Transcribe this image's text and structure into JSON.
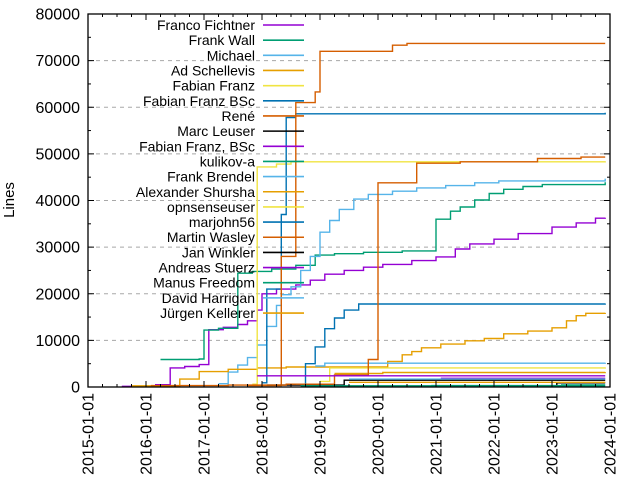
{
  "chart_data": {
    "type": "line",
    "title": "",
    "xlabel": "",
    "ylabel": "Lines",
    "x_ticks": [
      "2015-01-01",
      "2016-01-01",
      "2017-01-01",
      "2018-01-01",
      "2019-01-01",
      "2020-01-01",
      "2021-01-01",
      "2022-01-01",
      "2023-01-01",
      "2024-01-01"
    ],
    "y_ticks": [
      "0",
      "10000",
      "20000",
      "30000",
      "40000",
      "50000",
      "60000",
      "70000",
      "80000"
    ],
    "ylim": [
      0,
      80000
    ],
    "y_tick_step": 10000,
    "y_minor_step": 5000,
    "x_minor_per_year": 4,
    "grid": "horizontal-dashed",
    "grid_color": "#a8a8a8",
    "axis_color": "#000000",
    "legend_position": "top-left-inside",
    "series": [
      {
        "name": "Franco Fichtner",
        "color": "#9400d3",
        "points": [
          [
            "2015-08",
            150
          ],
          [
            "2016-03",
            500
          ],
          [
            "2016-06",
            4100
          ],
          [
            "2016-09",
            4400
          ],
          [
            "2016-12",
            4800
          ],
          [
            "2017-02",
            12300
          ],
          [
            "2017-05",
            12800
          ],
          [
            "2017-08",
            13400
          ],
          [
            "2017-10",
            14200
          ],
          [
            "2017-12",
            16500
          ],
          [
            "2018-01",
            20000
          ],
          [
            "2018-04",
            21000
          ],
          [
            "2018-08",
            21900
          ],
          [
            "2018-11",
            22900
          ],
          [
            "2019-02",
            24200
          ],
          [
            "2019-06",
            25000
          ],
          [
            "2019-10",
            25700
          ],
          [
            "2020-02",
            26300
          ],
          [
            "2020-08",
            27100
          ],
          [
            "2021-01",
            27900
          ],
          [
            "2021-05",
            29600
          ],
          [
            "2021-08",
            30700
          ],
          [
            "2022-01",
            31700
          ],
          [
            "2022-06",
            32900
          ],
          [
            "2023-01",
            34300
          ],
          [
            "2023-06",
            35200
          ],
          [
            "2023-10",
            36200
          ],
          [
            "2023-12",
            36300
          ]
        ]
      },
      {
        "name": "Frank Wall",
        "color": "#009e73",
        "points": [
          [
            "2016-04",
            5900
          ],
          [
            "2016-12",
            6000
          ],
          [
            "2017-01",
            12200
          ],
          [
            "2017-04",
            12600
          ],
          [
            "2017-08",
            24400
          ],
          [
            "2017-11",
            24800
          ],
          [
            "2018-03",
            25300
          ],
          [
            "2018-08",
            26100
          ],
          [
            "2018-12",
            28300
          ],
          [
            "2019-04",
            28600
          ],
          [
            "2019-10",
            28900
          ],
          [
            "2020-06",
            29200
          ],
          [
            "2021-01",
            36000
          ],
          [
            "2021-04",
            37700
          ],
          [
            "2021-06",
            38600
          ],
          [
            "2021-09",
            40100
          ],
          [
            "2021-12",
            41500
          ],
          [
            "2022-03",
            42400
          ],
          [
            "2022-07",
            43000
          ],
          [
            "2022-11",
            43400
          ],
          [
            "2023-12",
            43900
          ]
        ]
      },
      {
        "name": "Michael",
        "color": "#56b4e9",
        "points": [
          [
            "2017-04",
            700
          ],
          [
            "2017-06",
            3200
          ],
          [
            "2017-08",
            4700
          ],
          [
            "2017-10",
            6300
          ],
          [
            "2017-12",
            9000
          ],
          [
            "2018-02",
            13000
          ],
          [
            "2018-04",
            17500
          ],
          [
            "2018-05",
            19800
          ],
          [
            "2018-07",
            21500
          ],
          [
            "2018-09",
            25000
          ],
          [
            "2018-11",
            28000
          ],
          [
            "2019-01",
            33200
          ],
          [
            "2019-03",
            35700
          ],
          [
            "2019-05",
            38100
          ],
          [
            "2019-08",
            40300
          ],
          [
            "2019-11",
            41300
          ],
          [
            "2020-04",
            42000
          ],
          [
            "2020-09",
            42700
          ],
          [
            "2021-03",
            43200
          ],
          [
            "2021-09",
            43800
          ],
          [
            "2022-02",
            44200
          ],
          [
            "2023-12",
            44700
          ]
        ]
      },
      {
        "name": "Ad Schellevis",
        "color": "#e69f00",
        "points": [
          [
            "2015-10",
            250
          ],
          [
            "2016-08",
            1700
          ],
          [
            "2016-12",
            3300
          ],
          [
            "2017-06",
            3800
          ],
          [
            "2017-12",
            4100
          ],
          [
            "2018-06",
            4300
          ],
          [
            "2020-03",
            5500
          ],
          [
            "2020-06",
            6900
          ],
          [
            "2020-08",
            7600
          ],
          [
            "2020-10",
            8400
          ],
          [
            "2021-02",
            9200
          ],
          [
            "2021-07",
            9900
          ],
          [
            "2021-11",
            10400
          ],
          [
            "2022-03",
            11400
          ],
          [
            "2022-08",
            12000
          ],
          [
            "2023-01",
            12700
          ],
          [
            "2023-04",
            14200
          ],
          [
            "2023-06",
            15300
          ],
          [
            "2023-08",
            15800
          ],
          [
            "2023-12",
            15900
          ]
        ]
      },
      {
        "name": "Fabian Franz",
        "color": "#f0e442",
        "points": [
          [
            "2017-11",
            600
          ],
          [
            "2017-12",
            47200
          ],
          [
            "2018-04",
            47800
          ],
          [
            "2018-07",
            48300
          ],
          [
            "2023-12",
            48400
          ]
        ]
      },
      {
        "name": "Fabian Franz BSc",
        "color": "#0072b2",
        "points": [
          [
            "2018-01",
            900
          ],
          [
            "2018-02",
            21000
          ],
          [
            "2018-05",
            37000
          ],
          [
            "2018-06",
            57800
          ],
          [
            "2018-08",
            58600
          ],
          [
            "2023-12",
            58800
          ]
        ]
      },
      {
        "name": "René",
        "color": "#d55e00",
        "points": [
          [
            "2017-10",
            300
          ],
          [
            "2018-05",
            28000
          ],
          [
            "2018-08",
            61000
          ],
          [
            "2018-12",
            63300
          ],
          [
            "2019-01",
            72000
          ],
          [
            "2020-04",
            73300
          ],
          [
            "2020-07",
            73700
          ],
          [
            "2023-12",
            73700
          ]
        ]
      },
      {
        "name": "Marc Leuser",
        "color": "#000000",
        "points": [
          [
            "2018-02",
            400
          ],
          [
            "2019-06",
            1450
          ],
          [
            "2023-12",
            1450
          ]
        ]
      },
      {
        "name": "Fabian Franz, BSc",
        "color": "#9400d3",
        "points": [
          [
            "2021-02",
            1860
          ],
          [
            "2023-12",
            1860
          ]
        ]
      },
      {
        "name": "kulikov-a",
        "color": "#009e73",
        "points": [
          [
            "2020-12",
            300
          ],
          [
            "2023-03",
            450
          ],
          [
            "2023-12",
            450
          ]
        ]
      },
      {
        "name": "Frank Brendel",
        "color": "#56b4e9",
        "points": [
          [
            "2018-12",
            4500
          ],
          [
            "2019-02",
            5100
          ],
          [
            "2023-12",
            5200
          ]
        ]
      },
      {
        "name": "Alexander Shursha",
        "color": "#e69f00",
        "points": [
          [
            "2019-04",
            2900
          ],
          [
            "2020-02",
            3100
          ],
          [
            "2023-12",
            3200
          ]
        ]
      },
      {
        "name": "opnsenseuser",
        "color": "#f0e442",
        "points": [
          [
            "2019-01",
            1200
          ],
          [
            "2019-03",
            4100
          ],
          [
            "2023-12",
            4200
          ]
        ]
      },
      {
        "name": "marjohn56",
        "color": "#0072b2",
        "points": [
          [
            "2018-08",
            600
          ],
          [
            "2018-10",
            5000
          ],
          [
            "2018-12",
            8600
          ],
          [
            "2019-02",
            12500
          ],
          [
            "2019-04",
            14800
          ],
          [
            "2019-06",
            16500
          ],
          [
            "2019-09",
            17800
          ],
          [
            "2023-12",
            17900
          ]
        ]
      },
      {
        "name": "Martin Wasley",
        "color": "#d55e00",
        "points": [
          [
            "2016-02",
            300
          ],
          [
            "2017-06",
            400
          ],
          [
            "2018-06",
            600
          ],
          [
            "2019-04",
            2600
          ],
          [
            "2019-11",
            5900
          ],
          [
            "2020-01",
            43800
          ],
          [
            "2020-09",
            48000
          ],
          [
            "2021-06",
            48300
          ],
          [
            "2022-10",
            49000
          ],
          [
            "2023-07",
            49300
          ],
          [
            "2023-12",
            49300
          ]
        ]
      },
      {
        "name": "Jan Winkler",
        "color": "#000000",
        "points": [
          [
            "2019-01",
            200
          ],
          [
            "2023-02",
            900
          ],
          [
            "2023-12",
            900
          ]
        ]
      },
      {
        "name": "Andreas Stuerz",
        "color": "#9400d3",
        "points": [
          [
            "2017-12",
            2400
          ],
          [
            "2023-12",
            2400
          ]
        ]
      },
      {
        "name": "Manus Freedom",
        "color": "#009e73",
        "points": [
          [
            "2018-09",
            250
          ],
          [
            "2023-12",
            250
          ]
        ]
      },
      {
        "name": "David Harrigan",
        "color": "#56b4e9",
        "points": [
          [
            "2019-07",
            1700
          ],
          [
            "2023-12",
            1700
          ]
        ]
      },
      {
        "name": "Jürgen Kellerer",
        "color": "#e69f00",
        "points": [
          [
            "2019-07",
            1000
          ],
          [
            "2023-12",
            1000
          ]
        ]
      }
    ]
  }
}
